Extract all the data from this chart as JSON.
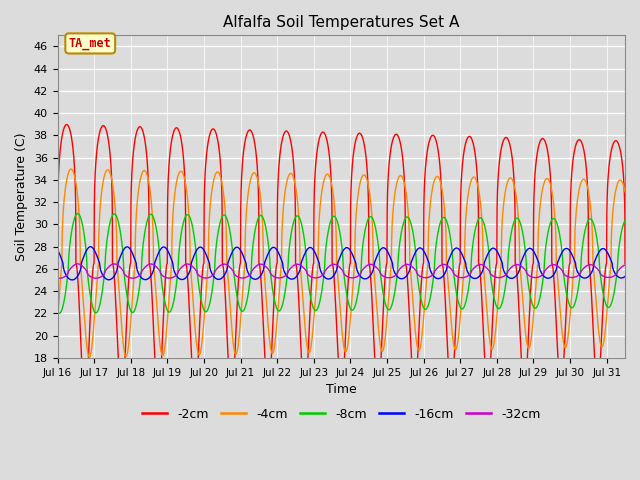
{
  "title": "Alfalfa Soil Temperatures Set A",
  "xlabel": "Time",
  "ylabel": "Soil Temperature (C)",
  "ylim": [
    18,
    47
  ],
  "annotation_text": "TA_met",
  "annotation_color": "#cc0000",
  "annotation_bg": "#ffffcc",
  "annotation_border": "#bb8800",
  "bg_color": "#dcdcdc",
  "plot_bg_color": "#dcdcdc",
  "grid_color": "#ffffff",
  "series": [
    {
      "label": "-2cm",
      "color": "#ff0000",
      "amp": 12.5,
      "mean": 26.5,
      "phase": 0.0,
      "sharpness": 4.0
    },
    {
      "label": "-4cm",
      "color": "#ff8800",
      "amp": 8.5,
      "mean": 26.5,
      "phase": 0.12,
      "sharpness": 2.5
    },
    {
      "label": "-8cm",
      "color": "#00cc00",
      "amp": 4.5,
      "mean": 26.5,
      "phase": 0.3,
      "sharpness": 1.5
    },
    {
      "label": "-16cm",
      "color": "#0000ff",
      "amp": 1.5,
      "mean": 26.5,
      "phase": 0.65,
      "sharpness": 1.0
    },
    {
      "label": "-32cm",
      "color": "#cc00cc",
      "amp": 0.65,
      "mean": 25.8,
      "phase": 1.3,
      "sharpness": 1.0
    }
  ],
  "xtick_labels": [
    "Jul 16",
    "Jul 17",
    "Jul 18",
    "Jul 19",
    "Jul 20",
    "Jul 21",
    "Jul 22",
    "Jul 23",
    "Jul 24",
    "Jul 25",
    "Jul 26",
    "Jul 27",
    "Jul 28",
    "Jul 29",
    "Jul 30",
    "Jul 31"
  ],
  "ytick_values": [
    18,
    20,
    22,
    24,
    26,
    28,
    30,
    32,
    34,
    36,
    38,
    40,
    42,
    44,
    46
  ],
  "legend_entries": [
    "-2cm",
    "-4cm",
    "-8cm",
    "-16cm",
    "-32cm"
  ],
  "legend_colors": [
    "#ff0000",
    "#ff8800",
    "#00cc00",
    "#0000ff",
    "#cc00cc"
  ]
}
